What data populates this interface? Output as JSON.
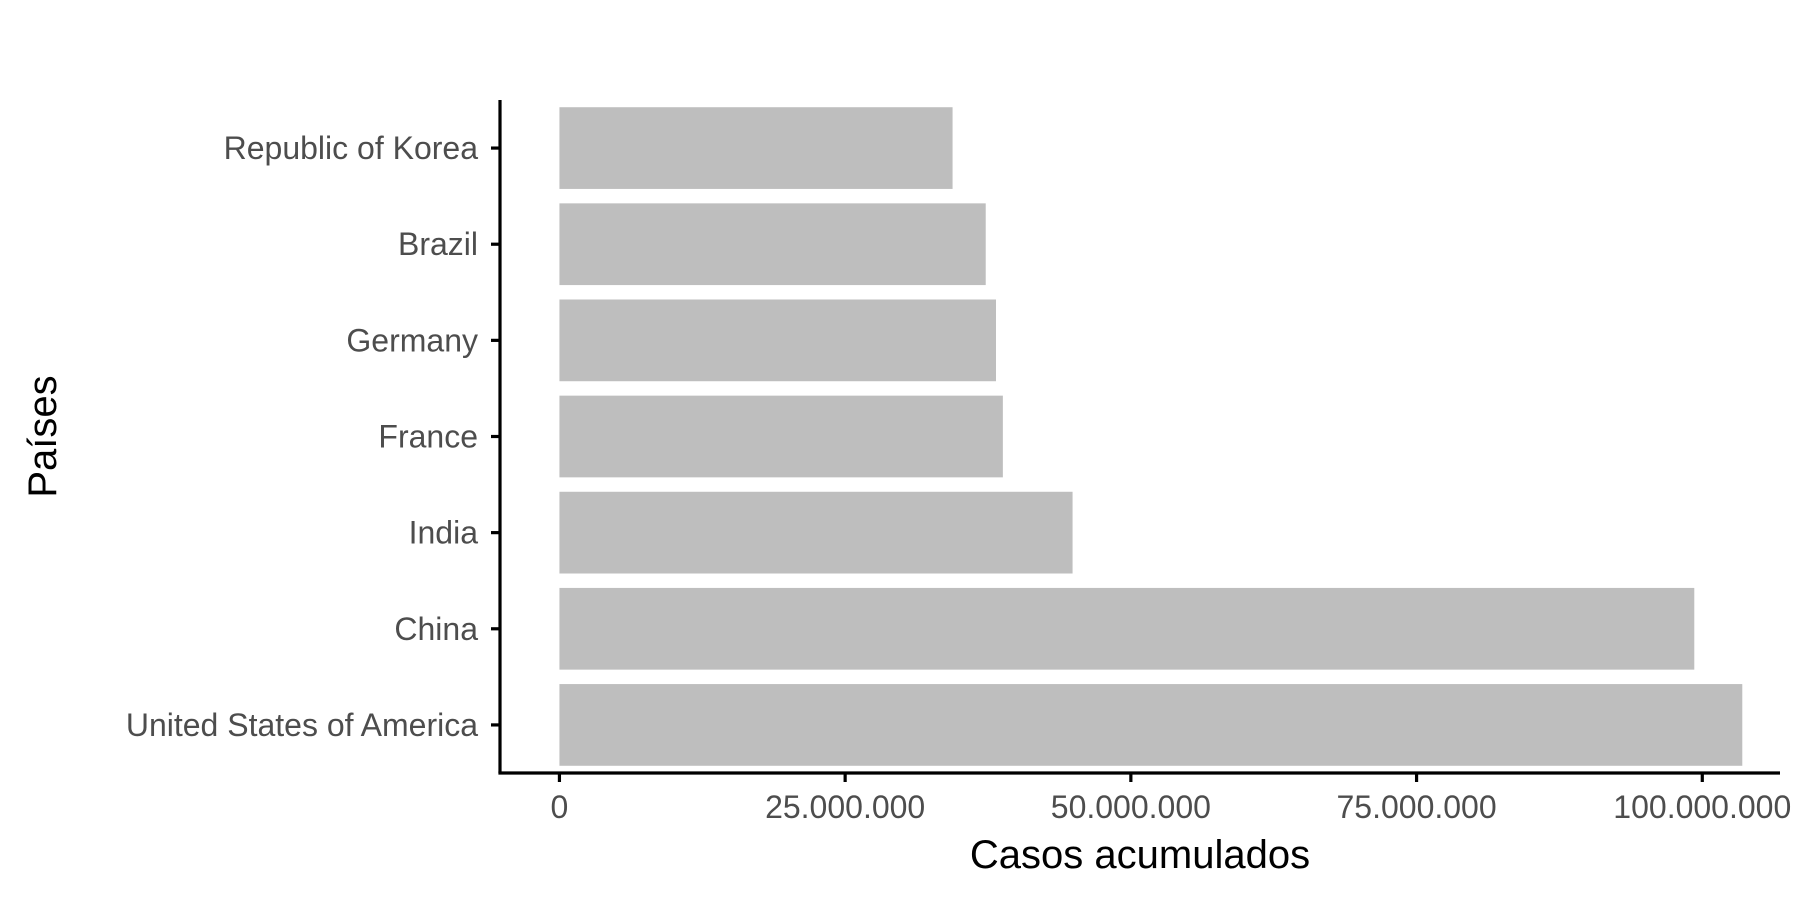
{
  "chart_data": {
    "type": "bar",
    "orientation": "horizontal",
    "categories": [
      "United States of America",
      "China",
      "India",
      "France",
      "Germany",
      "Brazil",
      "Republic of Korea"
    ],
    "values": [
      103500000,
      99300000,
      44900000,
      38800000,
      38200000,
      37300000,
      34400000
    ],
    "xlabel": "Casos acumulados",
    "ylabel": "Países",
    "xlim": [
      -5200000,
      106800000
    ],
    "x_ticks": [
      0,
      25000000,
      50000000,
      75000000,
      100000000
    ],
    "x_tick_labels": [
      "0",
      "25.000.000",
      "50.000.000",
      "75.000.000",
      "100.000.000"
    ],
    "bar_color": "#bebebe",
    "grid": false,
    "legend": "none"
  }
}
